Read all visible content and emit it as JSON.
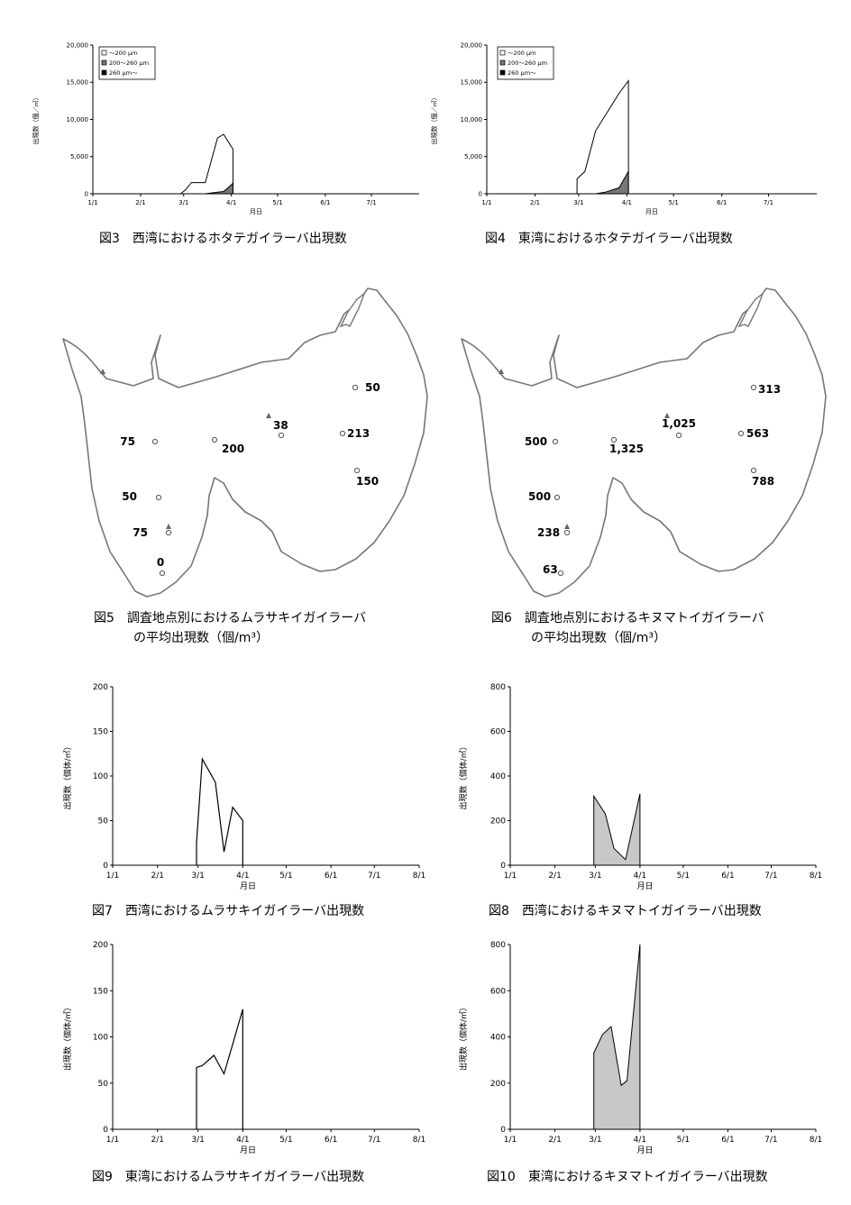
{
  "captions": {
    "fig3": "図3　西湾におけるホタテガイラーバ出現数",
    "fig4": "図4　東湾におけるホタテガイラーバ出現数",
    "fig5_line1": "図5　調査地点別におけるムラサキイガイラーバ",
    "fig5_line2": "の平均出現数（個/m³）",
    "fig6_line1": "図6　調査地点別におけるキヌマトイガイラーバ",
    "fig6_line2": "の平均出現数（個/m³）",
    "fig7": "図7　西湾におけるムラサキイガイラーバ出現数",
    "fig8": "図8　西湾におけるキヌマトイガイラーバ出現数",
    "fig9": "図9　東湾におけるムラサキイガイラーバ出現数",
    "fig10": "図10　東湾におけるキヌマトイガイラーバ出現数"
  },
  "map5_labels": [
    "50",
    "75",
    "200",
    "38",
    "213",
    "150",
    "50",
    "75",
    "0"
  ],
  "map6_labels": [
    "313",
    "500",
    "1,325",
    "1,025",
    "563",
    "788",
    "500",
    "238",
    "63"
  ],
  "chart_data": [
    {
      "id": "fig3",
      "type": "area",
      "ylabel": "出現数（個／㎥）",
      "xlabel": "月日",
      "xticks": [
        "1/1",
        "2/1",
        "3/1",
        "4/1",
        "5/1",
        "6/1",
        "7/1"
      ],
      "yticks": [
        "0",
        "5,000",
        "10,000",
        "15,000",
        "20,000"
      ],
      "ylim": [
        0,
        20000
      ],
      "legend": [
        "～200 μｍ",
        "200～260 μｍ",
        "260 μｍ～"
      ],
      "x": [
        57,
        60,
        64,
        73,
        81,
        85,
        91,
        91
      ],
      "series": [
        {
          "name": "～200 μｍ",
          "values": [
            0,
            500,
            1500,
            1500,
            7500,
            8000,
            6000,
            0
          ]
        },
        {
          "name": "200～260 μｍ",
          "values": [
            0,
            0,
            0,
            0,
            200,
            300,
            1400,
            0
          ]
        },
        {
          "name": "260 μｍ～",
          "values": [
            0,
            0,
            0,
            0,
            0,
            0,
            0,
            0
          ]
        }
      ]
    },
    {
      "id": "fig4",
      "type": "area",
      "ylabel": "出現数（個／㎥）",
      "xlabel": "月日",
      "xticks": [
        "1/1",
        "2/1",
        "3/1",
        "4/1",
        "5/1",
        "6/1",
        "7/1"
      ],
      "yticks": [
        "0",
        "5,000",
        "10,000",
        "15,000",
        "20,000"
      ],
      "ylim": [
        0,
        20000
      ],
      "legend": [
        "～200 μｍ",
        "200～260 μｍ",
        "260 μｍ～"
      ],
      "x": [
        58,
        58,
        63,
        70,
        76,
        85,
        91,
        91
      ],
      "series": [
        {
          "name": "～200 μｍ",
          "values": [
            0,
            2000,
            3000,
            8500,
            10500,
            13500,
            15200,
            0
          ]
        },
        {
          "name": "200～260 μｍ",
          "values": [
            0,
            0,
            0,
            0,
            200,
            800,
            3000,
            0
          ]
        },
        {
          "name": "260 μｍ～",
          "values": [
            0,
            0,
            0,
            0,
            0,
            0,
            0,
            0
          ]
        }
      ]
    },
    {
      "id": "fig7",
      "type": "line",
      "ylabel": "出現数（個体/㎥）",
      "xlabel": "月日",
      "xticks": [
        "1/1",
        "2/1",
        "3/1",
        "4/1",
        "5/1",
        "6/1",
        "7/1",
        "8/1"
      ],
      "yticks": [
        "0",
        "50",
        "100",
        "150",
        "200"
      ],
      "ylim": [
        0,
        200
      ],
      "x": [
        58,
        58,
        62,
        71,
        77,
        83,
        90,
        90
      ],
      "values": [
        0,
        25,
        119,
        93,
        15,
        65,
        50,
        0
      ]
    },
    {
      "id": "fig8",
      "type": "area",
      "ylabel": "出現数（個体/㎥）",
      "xlabel": "月日",
      "xticks": [
        "1/1",
        "2/1",
        "3/1",
        "4/1",
        "5/1",
        "6/1",
        "7/1",
        "8/1"
      ],
      "yticks": [
        "0",
        "200",
        "400",
        "600",
        "800"
      ],
      "ylim": [
        0,
        800
      ],
      "x": [
        58,
        58,
        66,
        72,
        80,
        90,
        90
      ],
      "values": [
        0,
        310,
        230,
        75,
        25,
        320,
        0
      ]
    },
    {
      "id": "fig9",
      "type": "line",
      "ylabel": "出現数（個体/㎥）",
      "xlabel": "月日",
      "xticks": [
        "1/1",
        "2/1",
        "3/1",
        "4/1",
        "5/1",
        "6/1",
        "7/1",
        "8/1"
      ],
      "yticks": [
        "0",
        "50",
        "100",
        "150",
        "200"
      ],
      "ylim": [
        0,
        200
      ],
      "x": [
        58,
        58,
        62,
        70,
        77,
        83,
        90,
        90
      ],
      "values": [
        0,
        67,
        69,
        80,
        60,
        92,
        130,
        0
      ]
    },
    {
      "id": "fig10",
      "type": "area",
      "ylabel": "出現数（個体/㎥）",
      "xlabel": "月日",
      "xticks": [
        "1/1",
        "2/1",
        "3/1",
        "4/1",
        "5/1",
        "6/1",
        "7/1",
        "8/1"
      ],
      "yticks": [
        "0",
        "200",
        "400",
        "600",
        "800"
      ],
      "ylim": [
        0,
        800
      ],
      "x": [
        58,
        58,
        64,
        70,
        77,
        81,
        90,
        90
      ],
      "values": [
        0,
        330,
        410,
        445,
        190,
        210,
        800,
        0
      ]
    }
  ]
}
